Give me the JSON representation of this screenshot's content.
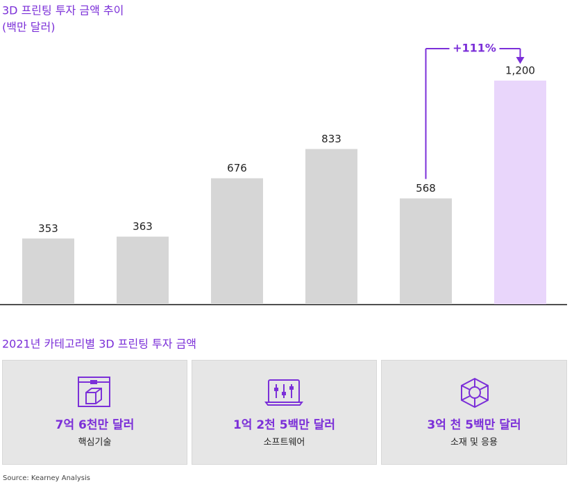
{
  "chart_data": {
    "type": "bar",
    "title": "3D 프린팅 투자 금액 추이",
    "subtitle": "(백만 달러)",
    "categories": [
      null,
      null,
      null,
      null,
      null,
      null
    ],
    "values": [
      353,
      363,
      676,
      833,
      568,
      1200
    ],
    "value_labels": [
      "353",
      "363",
      "676",
      "833",
      "568",
      "1,200"
    ],
    "colors": [
      "#d6d6d6",
      "#d6d6d6",
      "#d6d6d6",
      "#d6d6d6",
      "#d6d6d6",
      "#e9d6fb"
    ],
    "annotation": "+111%",
    "annotation_color": "#7b2fd8"
  },
  "breakdown": {
    "title": "2021년 카테고리별 3D 프린팅 투자 금액",
    "items": [
      {
        "amount": "7억 6천만 달러",
        "label": "핵심기술"
      },
      {
        "amount": "1억 2천 5백만 달러",
        "label": "소프트웨어"
      },
      {
        "amount": "3억 천 5백만 달러",
        "label": "소재 및 응용"
      }
    ]
  },
  "source": "Source: Kearney Analysis"
}
